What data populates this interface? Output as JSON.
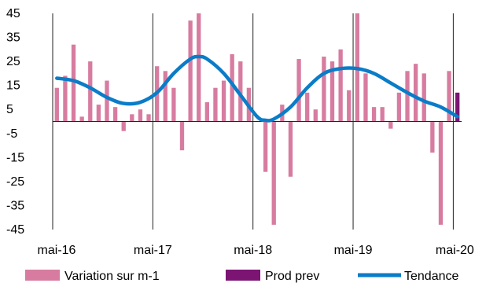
{
  "chart_data": {
    "type": "bar",
    "ylim": [
      -45,
      45
    ],
    "y_ticks": [
      45,
      35,
      25,
      15,
      5,
      -5,
      -15,
      -25,
      -35,
      -45
    ],
    "x_tick_labels": [
      "mai-16",
      "mai-17",
      "mai-18",
      "mai-19",
      "mai-20"
    ],
    "x_tick_month_index": [
      0,
      12,
      24,
      36,
      48
    ],
    "grid": "vertical lines at each May",
    "legend_position": "bottom",
    "colors": {
      "variation": "#d77ca0",
      "prod": "#7b1473",
      "trend": "#0a7cc8",
      "grid": "#222222"
    },
    "series": [
      {
        "name": "Variation sur m-1",
        "kind": "bar",
        "values": [
          14,
          19,
          32,
          2,
          25,
          7,
          17,
          6,
          -4,
          3,
          5,
          3,
          23,
          21,
          14,
          -12,
          42,
          47,
          8,
          14,
          17,
          28,
          25,
          14,
          0,
          -21,
          -43,
          7,
          -23,
          26,
          12,
          5,
          27,
          25,
          30,
          13,
          46,
          20,
          6,
          6,
          -3,
          12,
          21,
          24,
          20,
          -13,
          -43,
          21
        ]
      },
      {
        "name": "Prod prev",
        "kind": "bar",
        "x": [
          48
        ],
        "values": [
          12
        ]
      },
      {
        "name": "Tendance",
        "kind": "line",
        "x": [
          0,
          2,
          4,
          6,
          8,
          10,
          12,
          14,
          16,
          17,
          18,
          20,
          22,
          24,
          25,
          26,
          28,
          30,
          32,
          34,
          36,
          38,
          40,
          42,
          44,
          46,
          48
        ],
        "values": [
          18,
          17,
          14,
          10,
          7.5,
          8,
          12,
          20,
          26,
          27,
          26,
          20,
          11,
          2,
          0.5,
          1,
          6,
          14,
          20,
          22,
          22,
          20,
          16,
          12,
          8.5,
          6,
          2
        ]
      }
    ]
  }
}
